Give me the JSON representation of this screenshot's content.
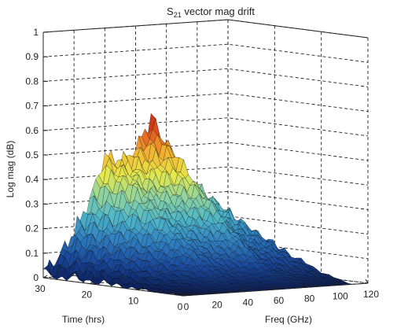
{
  "chart_data": {
    "type": "surface",
    "title": {
      "prefix": "S",
      "subscript": "21",
      "suffix": " vector mag drift"
    },
    "xlabel": "Time (hrs)",
    "ylabel": "Freq (GHz)",
    "zlabel": "Log mag (dB)",
    "xlim": [
      0,
      30
    ],
    "ylim": [
      0,
      120
    ],
    "zlim": [
      0,
      1
    ],
    "xticks": [
      "30",
      "20",
      "10",
      "0"
    ],
    "yticks": [
      "0",
      "20",
      "40",
      "60",
      "80",
      "100",
      "120"
    ],
    "zticks": [
      "0",
      "0.1",
      "0.2",
      "0.3",
      "0.4",
      "0.5",
      "0.6",
      "0.7",
      "0.8",
      "0.9",
      "1"
    ],
    "grid": true,
    "colormap": [
      "#0b1e5a",
      "#1a4a9e",
      "#2f7ec0",
      "#4db5c8",
      "#8ed4a0",
      "#e6e84a",
      "#f2b431",
      "#e0521d",
      "#b01010"
    ],
    "series": {
      "freq_ghz": [
        0,
        10,
        20,
        30,
        40,
        50,
        60,
        70,
        80,
        90,
        100,
        110
      ],
      "peak_drift_db_over_time": [
        0.02,
        0.08,
        0.18,
        0.3,
        0.48,
        0.45,
        0.5,
        0.62,
        0.42,
        0.35,
        0.32,
        0.25
      ]
    }
  }
}
